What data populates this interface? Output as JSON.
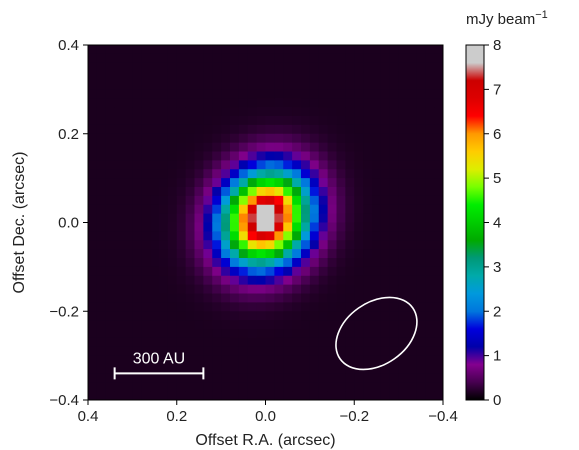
{
  "chart_data": {
    "type": "heatmap",
    "title": "",
    "xlabel": "Offset R.A. (arcsec)",
    "ylabel": "Offset Dec. (arcsec)",
    "xlim": [
      0.4,
      -0.4
    ],
    "ylim": [
      -0.4,
      0.4
    ],
    "x_ticks": [
      "0.4",
      "0.2",
      "0.0",
      "−0.2",
      "−0.4"
    ],
    "y_ticks": [
      "0.4",
      "0.2",
      "0.0",
      "−0.2",
      "−0.4"
    ],
    "x_tick_values": [
      0.4,
      0.2,
      0.0,
      -0.2,
      -0.4
    ],
    "y_tick_values": [
      0.4,
      0.2,
      0.0,
      -0.2,
      -0.4
    ],
    "colorbar": {
      "label": "mJy beam",
      "label_exponent": "−1",
      "range": [
        0,
        8
      ],
      "ticks": [
        "0",
        "1",
        "2",
        "3",
        "4",
        "5",
        "6",
        "7",
        "8"
      ],
      "tick_values": [
        0,
        1,
        2,
        3,
        4,
        5,
        6,
        7,
        8
      ],
      "colormap": "nipy_spectral"
    },
    "source": {
      "center": [
        0.0,
        0.01
      ],
      "peak": 8,
      "background": 0.15,
      "sigma_major": 0.072,
      "sigma_minor": 0.062,
      "position_angle_deg": 120
    },
    "beam": {
      "center": [
        -0.25,
        -0.25
      ],
      "major_axis": 0.2,
      "minor_axis": 0.14,
      "position_angle_deg": 55,
      "color": "#ffffff"
    },
    "scale_bar": {
      "label": "300 AU",
      "x_from": 0.34,
      "x_to": 0.14,
      "y": -0.34,
      "color": "#ffffff"
    }
  }
}
